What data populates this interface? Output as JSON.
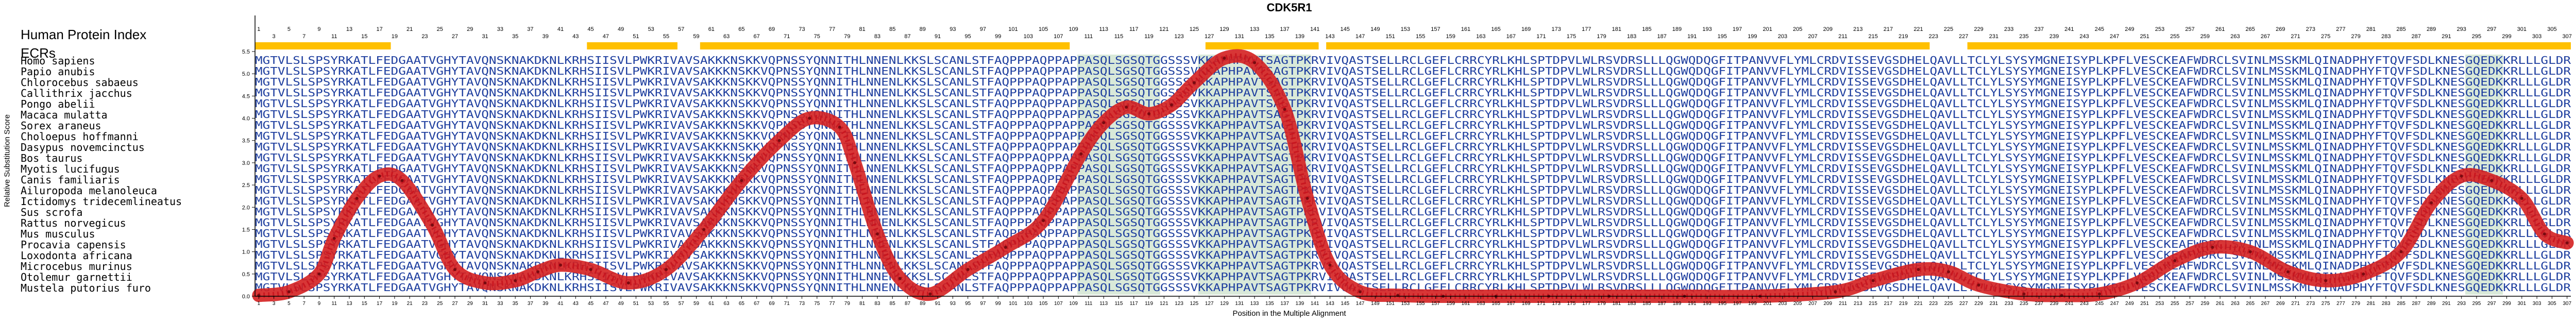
{
  "figure": {
    "title": "CDK5R1",
    "hpi_label": "Human Protein Index",
    "ecr_label": "ECRs",
    "ylabel": "Relative Substitution Score",
    "xlabel": "Position in the Multiple Alignment"
  },
  "species": [
    "Homo sapiens",
    "Papio anubis",
    "Chlorocebus sabaeus",
    "Callithrix jacchus",
    "Pongo abelii",
    "Macaca mulatta",
    "Sorex araneus",
    "Choloepus hoffmanni",
    "Dasypus novemcinctus",
    "Bos taurus",
    "Myotis lucifugus",
    "Canis familiaris",
    "Ailuropoda melanoleuca",
    "Ictidomys tridecemlineatus",
    "Sus scrofa",
    "Rattus norvegicus",
    "Mus musculus",
    "Procavia capensis",
    "Loxodonta africana",
    "Microcebus murinus",
    "Otolemur garnettii",
    "Mustela putorius furo"
  ],
  "sequence_human": "MGTVLSLSPSYRKATLFEDGAATVGHYTAVQNSKNAKDKNLKRHSIISVLPWKRIVAVSAKKKNSKKVQPNSSYQNNITHLNNENLKKSLSCANLSTFAQPPPAQPPAPPASQLSGSQTGGSSSVKKAPHPAVTSAGTPKRVIVQASTSELLRCLGEFLCRRCYRLKHLSPTDPVLWLRSVDRSLLLQGWQDQGFITPANVVFLYMLCRDVISSEVGSDHELQAVLLTCLYLSYSYMGNEISYPLKPFLVESCKEAFWDRCLSVINLMSSKMLQINADPHYFTQVFSDLKNESGQEDKKRLLLGLDR",
  "colors": {
    "sequence": "#1f3f9f",
    "ecr_bar": "#ffc000",
    "curve": "#d42020",
    "curve_marker": "#c8141e",
    "shade": "#cfe3d0"
  },
  "chart_data": {
    "type": "line",
    "title": "CDK5R1",
    "xlabel": "Position in the Multiple Alignment",
    "ylabel": "Relative Substitution Score",
    "xlim": [
      1,
      307
    ],
    "ylim": [
      0,
      5.5
    ],
    "y_ticks": [
      0.0,
      0.5,
      1.0,
      1.5,
      2.0,
      2.5,
      3.0,
      3.5,
      4.0,
      4.5,
      5.0,
      5.5
    ],
    "x_tick_step": 2,
    "hpi_tick_step": 2,
    "x": [
      1,
      5,
      9,
      11,
      14,
      17,
      20,
      24,
      27,
      31,
      35,
      38,
      41,
      45,
      50,
      55,
      60,
      65,
      70,
      74,
      78,
      80,
      83,
      86,
      90,
      95,
      100,
      105,
      110,
      113,
      116,
      119,
      122,
      125,
      129,
      133,
      137,
      140,
      143,
      147,
      152,
      158,
      165,
      172,
      180,
      190,
      200,
      210,
      215,
      221,
      225,
      229,
      235,
      240,
      245,
      250,
      255,
      260,
      265,
      270,
      275,
      280,
      285,
      289,
      293,
      297,
      301,
      304,
      307
    ],
    "y": [
      0.02,
      0.1,
      0.5,
      1.3,
      2.2,
      2.7,
      2.6,
      1.6,
      0.6,
      0.3,
      0.35,
      0.55,
      0.7,
      0.6,
      0.3,
      0.6,
      1.5,
      2.6,
      3.5,
      4.0,
      3.8,
      3.0,
      1.4,
      0.4,
      0.05,
      0.6,
      1.1,
      1.7,
      3.2,
      3.9,
      4.25,
      4.1,
      4.3,
      4.8,
      5.35,
      5.25,
      4.2,
      2.2,
      0.7,
      0.1,
      0.02,
      0.0,
      0.0,
      0.0,
      0.0,
      0.0,
      0.0,
      0.1,
      0.35,
      0.6,
      0.55,
      0.25,
      0.05,
      0.02,
      0.05,
      0.3,
      0.8,
      1.1,
      1.0,
      0.55,
      0.35,
      0.5,
      1.0,
      2.1,
      2.7,
      2.6,
      2.2,
      1.4,
      1.2
    ],
    "ecr_bars": [
      [
        1,
        18
      ],
      [
        45,
        56
      ],
      [
        60,
        108
      ],
      [
        127,
        141
      ],
      [
        143,
        222
      ],
      [
        228,
        307
      ]
    ],
    "shaded_columns": [
      [
        110,
        120
      ],
      [
        126,
        140
      ],
      [
        294,
        298
      ]
    ],
    "grid": false,
    "legend": "none"
  }
}
